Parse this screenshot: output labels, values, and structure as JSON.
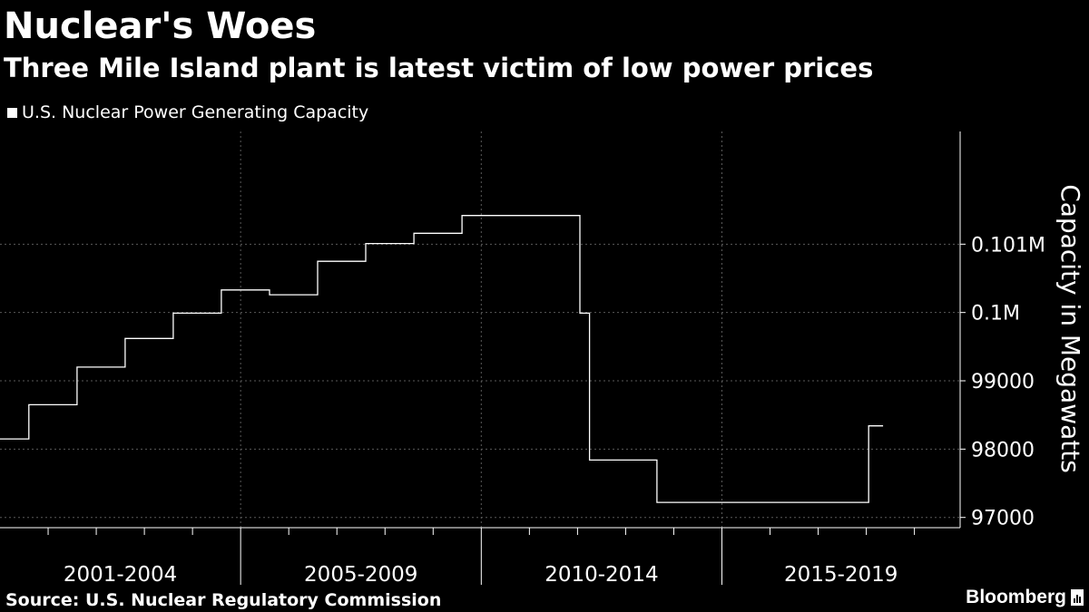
{
  "header": {
    "title": "Nuclear's Woes",
    "subtitle": "Three Mile Island plant is latest victim of low power prices"
  },
  "legend": {
    "label": "U.S. Nuclear Power Generating Capacity"
  },
  "footer": {
    "source": "Source: U.S. Nuclear Regulatory Commission",
    "brand": "Bloomberg"
  },
  "colors": {
    "background": "#000000",
    "line": "#ffffff",
    "grid": "#5a5a5a",
    "text": "#ffffff"
  },
  "chart_data": {
    "type": "line",
    "step": true,
    "title": "Nuclear's Woes",
    "subtitle": "Three Mile Island plant is latest victim of low power prices",
    "ylabel": "Capacity in Megawatts",
    "xlabel": "",
    "ylim": [
      96850,
      102650
    ],
    "yticks": [
      {
        "value": 97000,
        "label": "97000"
      },
      {
        "value": 98000,
        "label": "98000"
      },
      {
        "value": 99000,
        "label": "99000"
      },
      {
        "value": 100000,
        "label": "0.1M"
      },
      {
        "value": 101000,
        "label": "0.101M"
      }
    ],
    "x_range": [
      2000,
      2019.95
    ],
    "x_groups": [
      {
        "label": "2001-2004",
        "start": 2000,
        "end": 2005
      },
      {
        "label": "2005-2009",
        "start": 2005,
        "end": 2010
      },
      {
        "label": "2010-2014",
        "start": 2010,
        "end": 2015
      },
      {
        "label": "2015-2019",
        "start": 2015,
        "end": 2019.95
      }
    ],
    "minor_ticks": [
      2001,
      2002,
      2003,
      2004,
      2006,
      2007,
      2008,
      2009,
      2011,
      2012,
      2013,
      2014,
      2016,
      2017,
      2018,
      2019
    ],
    "grid": true,
    "series": [
      {
        "name": "U.S. Nuclear Power Generating Capacity",
        "points": [
          {
            "x": 2000.0,
            "y": 98150
          },
          {
            "x": 2000.6,
            "y": 98650
          },
          {
            "x": 2001.6,
            "y": 99200
          },
          {
            "x": 2002.6,
            "y": 99620
          },
          {
            "x": 2003.6,
            "y": 99990
          },
          {
            "x": 2004.6,
            "y": 100330
          },
          {
            "x": 2005.6,
            "y": 100260
          },
          {
            "x": 2006.6,
            "y": 100750
          },
          {
            "x": 2007.6,
            "y": 101010
          },
          {
            "x": 2008.6,
            "y": 101160
          },
          {
            "x": 2009.6,
            "y": 101420
          },
          {
            "x": 2012.05,
            "y": 99990
          },
          {
            "x": 2012.25,
            "y": 97840
          },
          {
            "x": 2013.65,
            "y": 97220
          },
          {
            "x": 2018.05,
            "y": 98340
          },
          {
            "x": 2018.35,
            "y": 98340
          }
        ]
      }
    ]
  }
}
